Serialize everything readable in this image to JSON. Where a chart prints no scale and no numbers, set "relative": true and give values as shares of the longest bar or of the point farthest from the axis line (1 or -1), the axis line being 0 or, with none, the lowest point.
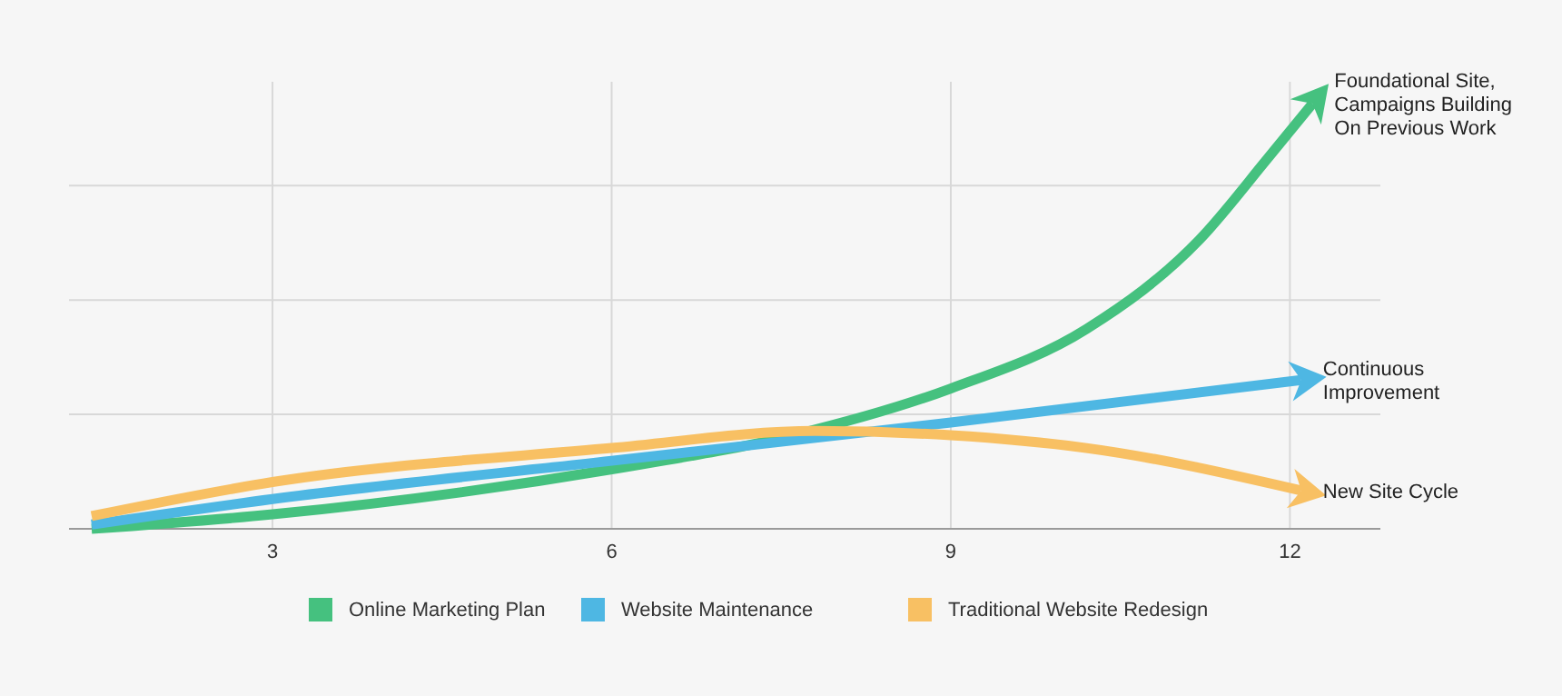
{
  "chart_data": {
    "type": "line",
    "relative": true,
    "xlim": [
      1.2,
      12.8
    ],
    "xticks": [
      3,
      6,
      9,
      12
    ],
    "grid": true,
    "legend": "bottom",
    "marker": "none",
    "line_style": "solid",
    "series": [
      {
        "name": "Online Marketing Plan",
        "color": "#45c17f",
        "x": [
          1.4,
          3,
          6,
          7.6,
          9,
          10.2,
          11.2,
          11.8,
          12.2
        ],
        "values": [
          0,
          0.034,
          0.14,
          0.22,
          0.33,
          0.47,
          0.68,
          0.87,
          1
        ]
      },
      {
        "name": "Website Maintenance",
        "color": "#4eb7e3",
        "x": [
          1.4,
          3,
          6,
          9,
          12.1
        ],
        "values": [
          0.01,
          0.07,
          0.16,
          0.25,
          0.35
        ]
      },
      {
        "name": "Traditional Website Redesign",
        "color": "#f8c063",
        "x": [
          1.4,
          3,
          6,
          7.8,
          9,
          10.2,
          12.1
        ],
        "values": [
          0.03,
          0.11,
          0.19,
          0.23,
          0.22,
          0.19,
          0.09
        ]
      }
    ],
    "annotations": [
      "Foundational Site,\nCampaigns Building\nOn Previous Work",
      "Continuous\nImprovement",
      "New Site Cycle"
    ]
  }
}
